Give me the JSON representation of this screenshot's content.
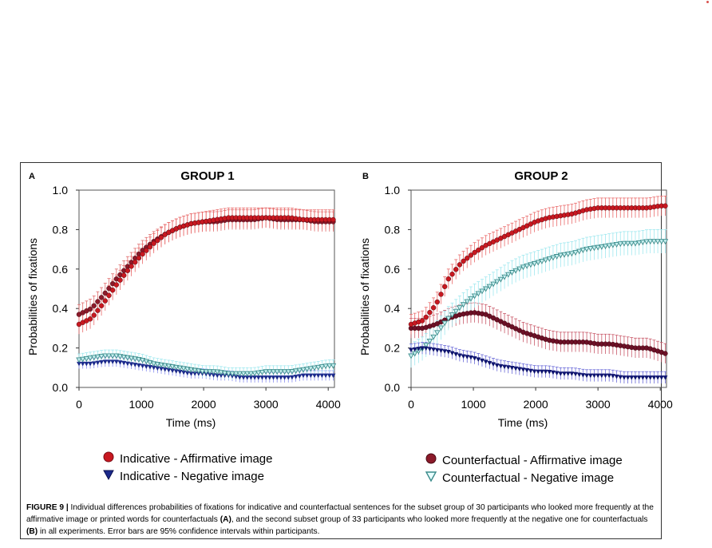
{
  "figure": {
    "caption_label": "FIGURE 9 |",
    "caption_text_1": " Individual differences probabilities of fixations for indicative and counterfactual sentences for the subset group of 30 participants who looked more frequently at the affirmative image or printed words for counterfactuals ",
    "caption_ref_a": "(A)",
    "caption_text_2": ", and the second subset group of 33 participants who looked more frequently at the negative one for counterfactuals ",
    "caption_ref_b": "(B)",
    "caption_text_3": " in all experiments. Error bars are 95% confidence intervals within participants."
  },
  "panels": [
    {
      "letter": "A",
      "title": "GROUP 1",
      "legend": [
        "Indicative - Affirmative image",
        "Indicative - Negative image"
      ]
    },
    {
      "letter": "B",
      "title": "GROUP 2",
      "legend": [
        "Counterfactual - Affirmative image",
        "Counterfactual - Negative image"
      ]
    }
  ],
  "colors": {
    "affirmative_marker": "#8b1a2a",
    "affirmative_error": "#e06a6a",
    "indicative_negative_marker": "#1c2a8c",
    "indicative_negative_error": "#8a8ff0",
    "cf_affirmative_marker": "#6b1026",
    "cf_affirmative_error": "#c95a6a",
    "cf_negative_marker": "#3a8b8b",
    "cf_negative_error": "#9fe8ef",
    "cf_aff2_marker": "#c81820",
    "cf_aff2_error": "#ea6a6a",
    "ind_neg2_marker": "#0f1570",
    "ind_neg2_error": "#6a6ad8"
  },
  "chart_data": [
    {
      "type": "line",
      "title": "GROUP 1",
      "xlabel": "Time (ms)",
      "ylabel": "Probabilities of fixations",
      "xlim": [
        0,
        4100
      ],
      "ylim": [
        0,
        1.0
      ],
      "xticks": [
        0,
        1000,
        2000,
        3000,
        4000
      ],
      "yticks": [
        "0.0",
        "0.2",
        "0.4",
        "0.6",
        "0.8",
        "1.0"
      ],
      "series": [
        {
          "name": "Indicative - Affirmative image",
          "marker": "circle",
          "errorbars": "95% CI",
          "x": [
            0,
            200,
            400,
            600,
            800,
            1000,
            1200,
            1400,
            1600,
            1800,
            2000,
            2200,
            2400,
            2600,
            2800,
            3000,
            3200,
            3400,
            3600,
            3800,
            4000,
            4100
          ],
          "y": [
            0.37,
            0.4,
            0.47,
            0.55,
            0.62,
            0.69,
            0.74,
            0.78,
            0.81,
            0.83,
            0.84,
            0.84,
            0.85,
            0.85,
            0.85,
            0.86,
            0.85,
            0.85,
            0.85,
            0.84,
            0.84,
            0.84
          ]
        },
        {
          "name": "Indicative - Negative image",
          "marker": "triangle-down",
          "errorbars": "95% CI",
          "x": [
            0,
            200,
            400,
            600,
            800,
            1000,
            1200,
            1400,
            1600,
            1800,
            2000,
            2200,
            2400,
            2600,
            2800,
            3000,
            3200,
            3400,
            3600,
            3800,
            4000,
            4100
          ],
          "y": [
            0.12,
            0.12,
            0.13,
            0.13,
            0.12,
            0.11,
            0.1,
            0.09,
            0.08,
            0.07,
            0.07,
            0.06,
            0.06,
            0.05,
            0.05,
            0.05,
            0.05,
            0.05,
            0.06,
            0.06,
            0.06,
            0.06
          ]
        },
        {
          "name": "",
          "marker": "circle",
          "errorbars": "95% CI",
          "x": [
            0,
            200,
            400,
            600,
            800,
            1000,
            1200,
            1400,
            1600,
            1800,
            2000,
            2200,
            2400,
            2600,
            2800,
            3000,
            3200,
            3400,
            3600,
            3800,
            4000,
            4100
          ],
          "y": [
            0.32,
            0.35,
            0.43,
            0.52,
            0.6,
            0.67,
            0.73,
            0.78,
            0.81,
            0.83,
            0.84,
            0.85,
            0.86,
            0.86,
            0.86,
            0.86,
            0.86,
            0.86,
            0.85,
            0.85,
            0.85,
            0.85
          ]
        },
        {
          "name": "",
          "marker": "triangle-down-open",
          "errorbars": "95% CI",
          "x": [
            0,
            200,
            400,
            600,
            800,
            1000,
            1200,
            1400,
            1600,
            1800,
            2000,
            2200,
            2400,
            2600,
            2800,
            3000,
            3200,
            3400,
            3600,
            3800,
            4000,
            4100
          ],
          "y": [
            0.14,
            0.15,
            0.16,
            0.16,
            0.15,
            0.14,
            0.12,
            0.11,
            0.1,
            0.09,
            0.08,
            0.08,
            0.07,
            0.07,
            0.07,
            0.08,
            0.08,
            0.08,
            0.09,
            0.1,
            0.11,
            0.11
          ]
        }
      ]
    },
    {
      "type": "line",
      "title": "GROUP 2",
      "xlabel": "Time (ms)",
      "ylabel": "Probabilities of fixations",
      "xlim": [
        0,
        4100
      ],
      "ylim": [
        0,
        1.0
      ],
      "xticks": [
        0,
        1000,
        2000,
        3000,
        4000
      ],
      "yticks": [
        "0.0",
        "0.2",
        "0.4",
        "0.6",
        "0.8",
        "1.0"
      ],
      "series": [
        {
          "name": "Counterfactual - Affirmative image",
          "marker": "circle",
          "errorbars": "95% CI",
          "x": [
            0,
            200,
            400,
            600,
            800,
            1000,
            1200,
            1400,
            1600,
            1800,
            2000,
            2200,
            2400,
            2600,
            2800,
            3000,
            3200,
            3400,
            3600,
            3800,
            4000,
            4100
          ],
          "y": [
            0.3,
            0.3,
            0.32,
            0.35,
            0.37,
            0.38,
            0.37,
            0.34,
            0.31,
            0.28,
            0.26,
            0.24,
            0.23,
            0.23,
            0.23,
            0.22,
            0.22,
            0.21,
            0.2,
            0.2,
            0.18,
            0.17
          ]
        },
        {
          "name": "Counterfactual - Negative image",
          "marker": "triangle-down-open",
          "errorbars": "95% CI",
          "x": [
            0,
            200,
            400,
            600,
            800,
            1000,
            1200,
            1400,
            1600,
            1800,
            2000,
            2200,
            2400,
            2600,
            2800,
            3000,
            3200,
            3400,
            3600,
            3800,
            4000,
            4100
          ],
          "y": [
            0.16,
            0.2,
            0.27,
            0.35,
            0.41,
            0.46,
            0.5,
            0.54,
            0.58,
            0.61,
            0.63,
            0.65,
            0.67,
            0.68,
            0.7,
            0.71,
            0.72,
            0.73,
            0.73,
            0.74,
            0.74,
            0.74
          ]
        },
        {
          "name": "",
          "marker": "circle",
          "errorbars": "95% CI",
          "x": [
            0,
            200,
            400,
            600,
            800,
            1000,
            1200,
            1400,
            1600,
            1800,
            2000,
            2200,
            2400,
            2600,
            2800,
            3000,
            3200,
            3400,
            3600,
            3800,
            4000,
            4100
          ],
          "y": [
            0.32,
            0.34,
            0.42,
            0.55,
            0.63,
            0.68,
            0.72,
            0.75,
            0.78,
            0.81,
            0.84,
            0.86,
            0.87,
            0.88,
            0.9,
            0.91,
            0.91,
            0.91,
            0.91,
            0.91,
            0.92,
            0.92
          ]
        },
        {
          "name": "",
          "marker": "triangle-down",
          "errorbars": "95% CI",
          "x": [
            0,
            200,
            400,
            600,
            800,
            1000,
            1200,
            1400,
            1600,
            1800,
            2000,
            2200,
            2400,
            2600,
            2800,
            3000,
            3200,
            3400,
            3600,
            3800,
            4000,
            4100
          ],
          "y": [
            0.19,
            0.2,
            0.19,
            0.18,
            0.16,
            0.15,
            0.13,
            0.11,
            0.1,
            0.09,
            0.08,
            0.08,
            0.07,
            0.07,
            0.06,
            0.06,
            0.06,
            0.05,
            0.05,
            0.05,
            0.05,
            0.05
          ]
        }
      ]
    }
  ]
}
